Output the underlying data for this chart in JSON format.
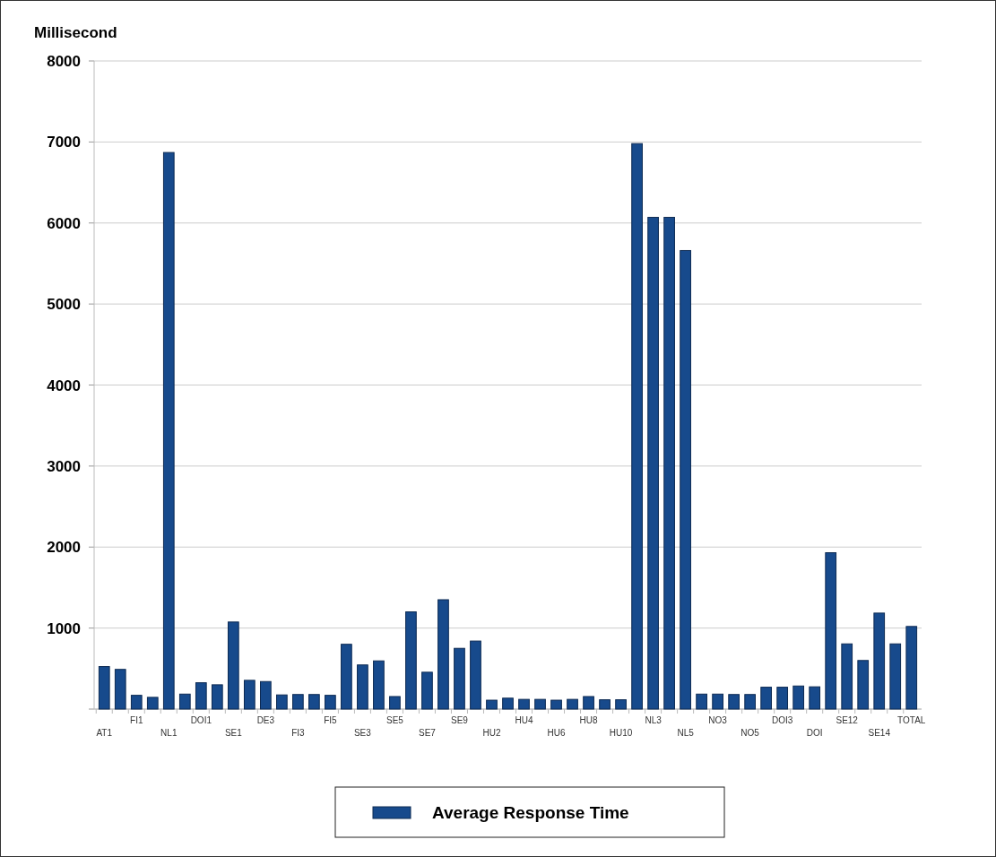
{
  "chart_data": {
    "type": "bar",
    "ylabel": "Millisecond",
    "categories": [
      "AT1",
      null,
      "FI1",
      null,
      "NL1",
      null,
      "DOI1",
      null,
      "SE1",
      null,
      "DE3",
      null,
      "FI3",
      null,
      "FI5",
      null,
      "SE3",
      null,
      "SE5",
      null,
      "SE7",
      null,
      "SE9",
      null,
      "HU2",
      null,
      "HU4",
      null,
      "HU6",
      null,
      "HU8",
      null,
      "HU10",
      null,
      "NL3",
      null,
      "NL5",
      null,
      "NO3",
      null,
      "NO5",
      null,
      "DOI3",
      null,
      "DOI",
      null,
      "SE12",
      null,
      "SE14",
      null,
      "TOTAL"
    ],
    "series": [
      {
        "name": "Average Response Time",
        "color": "#174a8c",
        "values": [
          525,
          490,
          170,
          145,
          6870,
          185,
          325,
          300,
          1075,
          355,
          340,
          175,
          180,
          180,
          170,
          800,
          545,
          595,
          155,
          1200,
          455,
          1350,
          750,
          840,
          110,
          135,
          120,
          120,
          110,
          120,
          155,
          115,
          115,
          6980,
          6070,
          6070,
          5660,
          185,
          185,
          180,
          180,
          270,
          270,
          285,
          275,
          1930,
          805,
          600,
          1185,
          805,
          1020
        ]
      }
    ],
    "ylim": [
      0,
      8000
    ],
    "yticks": [
      {
        "value": 0,
        "label": null
      },
      1000,
      2000,
      3000,
      4000,
      5000,
      6000,
      7000,
      8000
    ],
    "grid": "y",
    "legend": "bottom"
  }
}
